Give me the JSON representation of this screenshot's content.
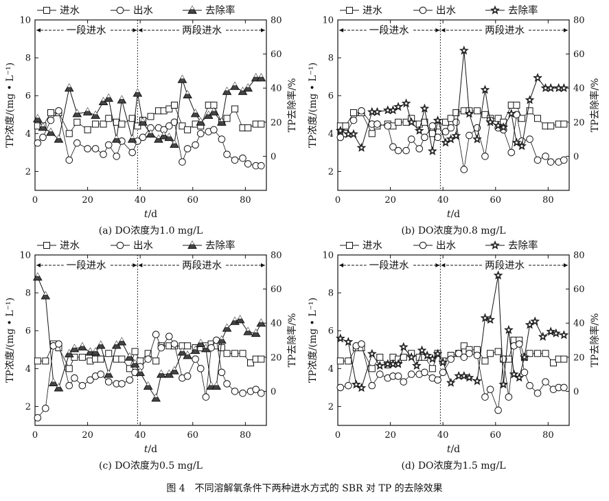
{
  "figure_caption": "图 4　不同溶解氧条件下两种进水方式的 SBR 对 TP 的去除效果",
  "colors": {
    "axis": "#111111",
    "marker_fill": "#ffffff",
    "removal_fill": "#444444"
  },
  "chart_data": [
    {
      "type": "line",
      "panel": "a",
      "caption": "(a) DO浓度为1.0 mg/L",
      "xlabel": "t/d",
      "ylabel_left": "TP浓度/(mg • L⁻¹)",
      "ylabel_right": "TP去除率/%",
      "xlim": [
        0,
        88
      ],
      "ylim_left": [
        1,
        10
      ],
      "ylim_right": [
        -20,
        80
      ],
      "x_ticks": [
        0,
        20,
        40,
        60,
        80
      ],
      "y_left_ticks": [
        2,
        4,
        6,
        8,
        10
      ],
      "y_right_ticks": [
        0,
        20,
        40,
        60,
        80
      ],
      "divider_x": 39,
      "phase_labels": [
        "一段进水",
        "两段进水"
      ],
      "legend": [
        "进水",
        "出水",
        "去除率"
      ],
      "removal_marker": "triangle",
      "series": [
        {
          "name": "进水",
          "axis": "left",
          "marker": "square",
          "x": [
            1,
            3,
            6,
            9,
            13,
            16,
            20,
            23,
            26,
            28,
            31,
            33,
            37,
            39,
            41,
            44,
            47,
            49,
            51,
            53,
            56,
            58,
            61,
            63,
            66,
            68,
            71,
            73,
            76,
            79,
            81,
            84,
            86
          ],
          "y": [
            4.4,
            4.4,
            5.1,
            5.1,
            4.0,
            4.6,
            4.2,
            4.5,
            4.5,
            4.8,
            4.6,
            4.5,
            4.8,
            4.4,
            4.7,
            4.9,
            5.2,
            5.2,
            5.3,
            5.5,
            4.4,
            4.2,
            4.5,
            4.4,
            5.5,
            5.5,
            4.6,
            4.8,
            5.3,
            4.3,
            4.3,
            4.5,
            4.5
          ]
        },
        {
          "name": "出水",
          "axis": "left",
          "marker": "circle",
          "x": [
            1,
            3,
            6,
            9,
            13,
            16,
            20,
            23,
            26,
            28,
            31,
            33,
            37,
            39,
            41,
            44,
            47,
            49,
            51,
            53,
            56,
            58,
            61,
            63,
            66,
            68,
            71,
            73,
            76,
            79,
            81,
            84,
            86
          ],
          "y": [
            3.5,
            3.8,
            4.7,
            5.2,
            2.6,
            3.5,
            3.2,
            3.2,
            2.9,
            3.4,
            2.8,
            3.6,
            3.0,
            3.6,
            3.8,
            4.3,
            4.3,
            4.2,
            4.4,
            4.6,
            2.5,
            3.2,
            3.4,
            4.0,
            4.1,
            4.2,
            3.7,
            2.9,
            2.6,
            2.7,
            2.4,
            2.3,
            2.3
          ]
        },
        {
          "name": "去除率",
          "axis": "right",
          "marker": "triangle",
          "x": [
            1,
            3,
            6,
            9,
            13,
            16,
            20,
            23,
            26,
            28,
            31,
            33,
            37,
            39,
            41,
            44,
            47,
            49,
            51,
            53,
            56,
            58,
            61,
            63,
            66,
            68,
            71,
            73,
            76,
            79,
            81,
            84,
            86
          ],
          "y": [
            22,
            17,
            14,
            10,
            40,
            25,
            26,
            24,
            32,
            34,
            10,
            33,
            10,
            37,
            20,
            13,
            10,
            12,
            11,
            7,
            45,
            36,
            25,
            20,
            24,
            26,
            20,
            38,
            41,
            38,
            40,
            46,
            46
          ]
        }
      ]
    },
    {
      "type": "line",
      "panel": "b",
      "caption": "(b) DO浓度为0.8 mg/L",
      "xlabel": "t/d",
      "ylabel_left": "TP浓度/(mg • L⁻¹)",
      "ylabel_right": "TP去除率/%",
      "xlim": [
        0,
        88
      ],
      "ylim_left": [
        1,
        10
      ],
      "ylim_right": [
        -20,
        80
      ],
      "x_ticks": [
        0,
        20,
        40,
        60,
        80
      ],
      "y_left_ticks": [
        2,
        4,
        6,
        8,
        10
      ],
      "y_right_ticks": [
        0,
        20,
        40,
        60,
        80
      ],
      "divider_x": 39,
      "phase_labels": [
        "一段进水",
        "两段进水"
      ],
      "legend": [
        "进水",
        "出水",
        "去除率"
      ],
      "removal_marker": "star",
      "series": [
        {
          "name": "进水",
          "axis": "left",
          "marker": "square",
          "x": [
            1,
            3,
            6,
            9,
            13,
            15,
            19,
            21,
            23,
            26,
            28,
            31,
            33,
            36,
            38,
            41,
            43,
            45,
            48,
            50,
            53,
            56,
            58,
            61,
            63,
            66,
            68,
            70,
            73,
            76,
            79,
            81,
            84,
            86
          ],
          "y": [
            4.4,
            4.4,
            5.1,
            5.1,
            4.0,
            4.4,
            4.5,
            4.4,
            4.6,
            4.6,
            4.8,
            4.5,
            4.6,
            4.0,
            4.4,
            4.6,
            4.8,
            5.1,
            5.2,
            5.2,
            5.2,
            5.0,
            4.8,
            4.8,
            4.6,
            5.5,
            5.5,
            4.8,
            5.2,
            4.8,
            4.4,
            4.4,
            4.5,
            4.5
          ]
        },
        {
          "name": "出水",
          "axis": "left",
          "marker": "circle",
          "x": [
            1,
            3,
            6,
            9,
            13,
            15,
            19,
            21,
            23,
            26,
            28,
            31,
            33,
            36,
            38,
            41,
            43,
            45,
            48,
            50,
            53,
            56,
            58,
            61,
            63,
            66,
            68,
            70,
            73,
            76,
            79,
            81,
            84,
            86
          ],
          "y": [
            3.8,
            4.0,
            4.7,
            5.2,
            4.5,
            4.5,
            4.4,
            3.3,
            3.1,
            3.1,
            3.7,
            3.2,
            3.8,
            4.4,
            3.8,
            4.1,
            4.3,
            4.6,
            2.1,
            3.9,
            4.3,
            2.8,
            4.7,
            4.3,
            4.2,
            3.0,
            5.0,
            3.6,
            3.7,
            2.6,
            2.8,
            2.5,
            2.5,
            2.6
          ]
        },
        {
          "name": "去除率",
          "axis": "right",
          "marker": "star",
          "x": [
            1,
            4,
            6,
            9,
            13,
            15,
            19,
            21,
            23,
            26,
            28,
            31,
            33,
            36,
            38,
            41,
            43,
            45,
            48,
            50,
            53,
            56,
            58,
            61,
            63,
            66,
            68,
            70,
            73,
            76,
            79,
            81,
            84,
            86
          ],
          "y": [
            15,
            13,
            13,
            5,
            26,
            26,
            27,
            27,
            29,
            31,
            20,
            15,
            28,
            3,
            21,
            8,
            10,
            12,
            62,
            25,
            10,
            39,
            20,
            18,
            17,
            25,
            8,
            6,
            33,
            46,
            40,
            40,
            40,
            40
          ]
        }
      ]
    },
    {
      "type": "line",
      "panel": "c",
      "caption": "(c) DO浓度为0.5 mg/L",
      "xlabel": "t/d",
      "ylabel_left": "TP浓度/(mg • L⁻¹)",
      "ylabel_right": "TP去除率/%",
      "xlim": [
        0,
        88
      ],
      "ylim_left": [
        1,
        10
      ],
      "ylim_right": [
        -20,
        80
      ],
      "x_ticks": [
        0,
        20,
        40,
        60,
        80
      ],
      "y_left_ticks": [
        2,
        4,
        6,
        8,
        10
      ],
      "y_right_ticks": [
        0,
        20,
        40,
        60,
        80
      ],
      "divider_x": 39,
      "phase_labels": [
        "一段进水",
        "两段进水"
      ],
      "legend": [
        "进水",
        "出水",
        "去除率"
      ],
      "removal_marker": "triangle",
      "series": [
        {
          "name": "进水",
          "axis": "left",
          "marker": "square",
          "x": [
            1,
            4,
            7,
            9,
            13,
            15,
            18,
            21,
            23,
            25,
            28,
            31,
            33,
            36,
            38,
            40,
            43,
            46,
            48,
            51,
            53,
            56,
            58,
            61,
            63,
            65,
            67,
            69,
            71,
            73,
            76,
            79,
            82,
            84,
            86
          ],
          "y": [
            4.4,
            4.4,
            5.3,
            5.1,
            4.0,
            4.6,
            4.6,
            4.4,
            4.5,
            4.5,
            4.8,
            4.5,
            4.5,
            4.0,
            4.9,
            4.4,
            4.8,
            4.4,
            5.2,
            5.2,
            5.2,
            5.2,
            5.2,
            5.1,
            5.1,
            5.2,
            5.3,
            5.2,
            5.1,
            4.8,
            4.8,
            4.8,
            4.3,
            4.5,
            4.5
          ]
        },
        {
          "name": "出水",
          "axis": "left",
          "marker": "circle",
          "x": [
            1,
            4,
            7,
            9,
            13,
            15,
            18,
            21,
            23,
            25,
            28,
            31,
            33,
            36,
            38,
            40,
            43,
            46,
            48,
            51,
            53,
            56,
            58,
            61,
            63,
            65,
            67,
            69,
            71,
            73,
            76,
            79,
            82,
            84,
            86
          ],
          "y": [
            1.4,
            1.9,
            5.2,
            5.3,
            3.1,
            3.5,
            3.1,
            3.4,
            3.6,
            3.7,
            3.3,
            3.2,
            3.2,
            3.4,
            3.8,
            4.1,
            4.5,
            5.8,
            5.1,
            5.7,
            5.3,
            3.5,
            3.6,
            4.5,
            4.0,
            2.5,
            5.1,
            5.5,
            3.8,
            3.2,
            2.8,
            2.7,
            2.8,
            2.9,
            2.7
          ]
        },
        {
          "name": "去除率",
          "axis": "right",
          "marker": "triangle",
          "x": [
            1,
            4,
            7,
            9,
            13,
            15,
            18,
            21,
            23,
            25,
            28,
            31,
            33,
            36,
            38,
            40,
            43,
            46,
            48,
            51,
            53,
            56,
            58,
            61,
            63,
            65,
            67,
            69,
            71,
            73,
            76,
            78,
            81,
            84,
            86
          ],
          "y": [
            67,
            56,
            5,
            2,
            22,
            25,
            26,
            23,
            23,
            27,
            10,
            27,
            29,
            20,
            16,
            11,
            3,
            -4,
            10,
            10,
            12,
            23,
            21,
            24,
            28,
            25,
            3,
            3,
            30,
            37,
            41,
            42,
            35,
            34,
            40
          ]
        }
      ]
    },
    {
      "type": "line",
      "panel": "d",
      "caption": "(d) DO浓度为1.5 mg/L",
      "xlabel": "t/d",
      "ylabel_left": "TP浓度/(mg • L⁻¹)",
      "ylabel_right": "TP去除率/%",
      "xlim": [
        0,
        88
      ],
      "ylim_left": [
        1,
        10
      ],
      "ylim_right": [
        -20,
        80
      ],
      "x_ticks": [
        0,
        20,
        40,
        60,
        80
      ],
      "y_left_ticks": [
        2,
        4,
        6,
        8,
        10
      ],
      "y_right_ticks": [
        0,
        20,
        40,
        60,
        80
      ],
      "divider_x": 39,
      "phase_labels": [
        "一段进水",
        "两段进水"
      ],
      "legend": [
        "进水",
        "出水",
        "去除率"
      ],
      "removal_marker": "star",
      "series": [
        {
          "name": "进水",
          "axis": "left",
          "marker": "square",
          "x": [
            1,
            4,
            7,
            9,
            13,
            16,
            19,
            21,
            23,
            25,
            28,
            31,
            33,
            36,
            38,
            40,
            43,
            46,
            48,
            50,
            53,
            56,
            58,
            61,
            63,
            65,
            67,
            69,
            71,
            73,
            76,
            79,
            82,
            84,
            86
          ],
          "y": [
            4.4,
            4.4,
            5.1,
            5.1,
            4.0,
            4.6,
            4.2,
            4.6,
            4.5,
            4.6,
            4.8,
            4.6,
            4.6,
            4.0,
            4.8,
            4.4,
            4.7,
            4.8,
            5.2,
            5.0,
            5.0,
            4.4,
            4.8,
            4.9,
            4.5,
            4.5,
            5.5,
            5.5,
            4.6,
            4.8,
            4.8,
            4.8,
            4.3,
            4.5,
            4.5
          ]
        },
        {
          "name": "出水",
          "axis": "left",
          "marker": "circle",
          "x": [
            1,
            4,
            7,
            9,
            13,
            16,
            19,
            21,
            23,
            25,
            28,
            31,
            33,
            36,
            38,
            40,
            43,
            46,
            48,
            50,
            53,
            56,
            58,
            61,
            63,
            65,
            67,
            69,
            71,
            73,
            76,
            79,
            82,
            84,
            86
          ],
          "y": [
            3.0,
            3.1,
            5.2,
            5.3,
            3.1,
            3.7,
            3.5,
            3.6,
            3.6,
            3.3,
            3.7,
            3.7,
            3.8,
            3.5,
            3.4,
            3.8,
            4.5,
            4.8,
            4.6,
            4.8,
            4.7,
            2.5,
            2.9,
            1.8,
            4.5,
            2.5,
            5.2,
            5.3,
            3.8,
            3.1,
            2.7,
            3.3,
            2.9,
            3.0,
            3.0
          ]
        },
        {
          "name": "去除率",
          "axis": "right",
          "marker": "star",
          "x": [
            1,
            4,
            7,
            9,
            13,
            16,
            19,
            21,
            23,
            25,
            28,
            30,
            32,
            34,
            36,
            38,
            40,
            43,
            46,
            48,
            50,
            53,
            56,
            58,
            61,
            63,
            65,
            67,
            69,
            71,
            73,
            75,
            78,
            81,
            83,
            86
          ],
          "y": [
            31,
            29,
            4,
            2,
            22,
            15,
            16,
            16,
            16,
            26,
            20,
            15,
            24,
            21,
            19,
            22,
            17,
            5,
            9,
            9,
            8,
            6,
            43,
            42,
            68,
            4,
            36,
            10,
            8,
            20,
            39,
            41,
            32,
            35,
            34,
            33
          ]
        }
      ]
    }
  ]
}
